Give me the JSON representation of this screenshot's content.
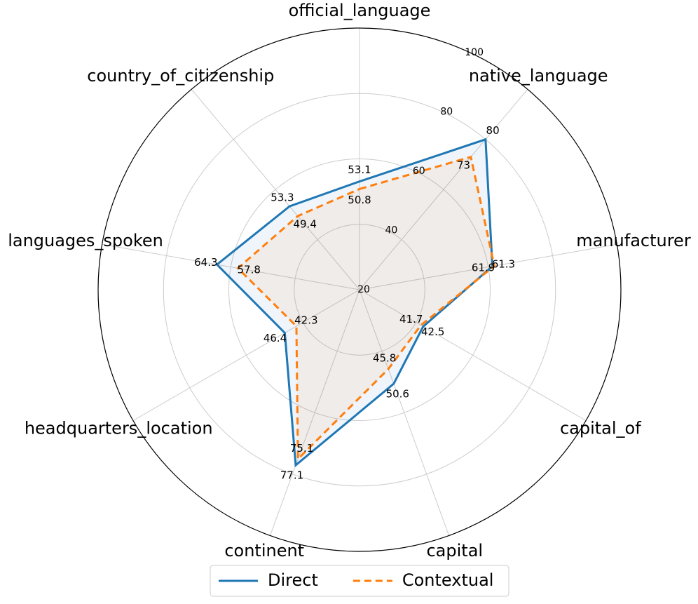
{
  "chart_data": {
    "type": "radar",
    "categories": [
      "official_language",
      "native_language",
      "manufacturer",
      "capital_of",
      "capital",
      "continent",
      "headquarters_location",
      "languages_spoken",
      "country_of_citizenship"
    ],
    "series": [
      {
        "name": "Direct",
        "color": "#1f77b4",
        "values": [
          53.1,
          80.0,
          61.3,
          42.5,
          50.6,
          77.1,
          46.4,
          64.3,
          53.3
        ]
      },
      {
        "name": "Contextual",
        "color": "#ff7f0e",
        "values": [
          50.8,
          73.0,
          61.9,
          41.7,
          45.8,
          75.1,
          42.3,
          57.8,
          49.4
        ]
      }
    ],
    "rlim": [
      20,
      100
    ],
    "rticks": [
      20,
      40,
      60,
      80,
      100
    ],
    "grid": true,
    "legend": "bottom"
  }
}
